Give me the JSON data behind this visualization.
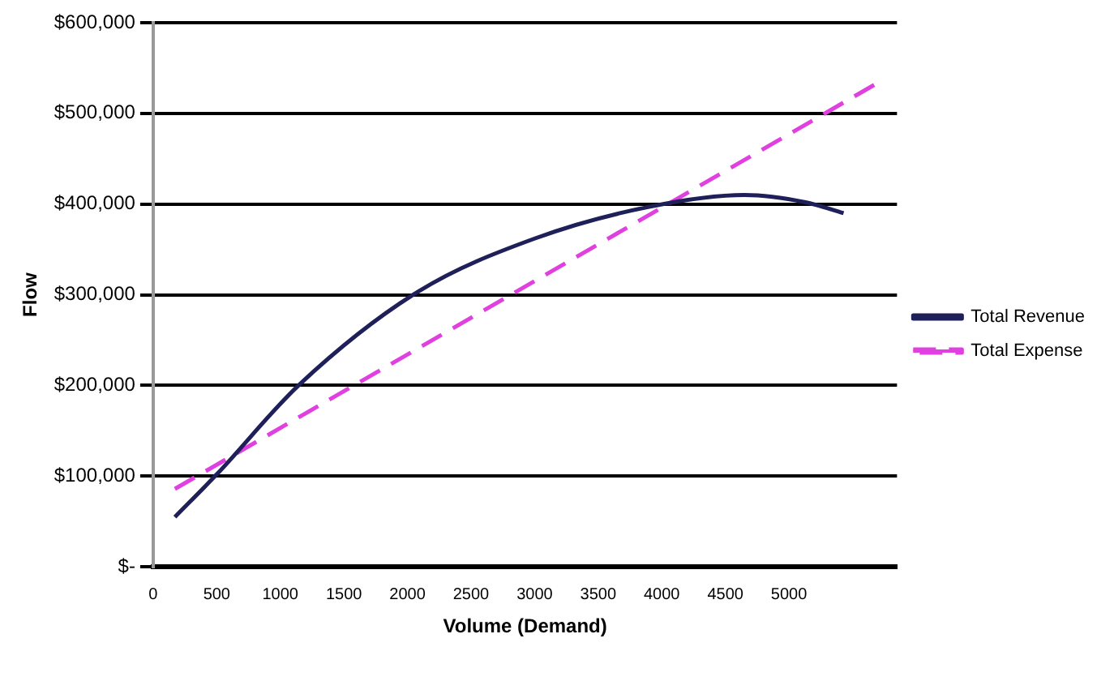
{
  "chart_data": {
    "type": "line",
    "xlabel": "Volume (Demand)",
    "ylabel": "Flow",
    "xlim": [
      0,
      5850
    ],
    "xticks": [
      0,
      500,
      1000,
      1500,
      2000,
      2500,
      3000,
      3500,
      4000,
      4500,
      5000
    ],
    "ylim": [
      0,
      600000
    ],
    "yticks": [
      {
        "value": 0,
        "label": "$-"
      },
      {
        "value": 100000,
        "label": "$100,000"
      },
      {
        "value": 200000,
        "label": "$200,000"
      },
      {
        "value": 300000,
        "label": "$300,000"
      },
      {
        "value": 400000,
        "label": "$400,000"
      },
      {
        "value": 500000,
        "label": "$500,000"
      },
      {
        "value": 600000,
        "label": "$600,000"
      }
    ],
    "grid": "y",
    "legend": "right",
    "marker": "none",
    "series": [
      {
        "name": "Total Revenue",
        "color": "#1f1f5a",
        "line_style": "solid",
        "x": [
          171,
          500,
          1150,
          2090,
          3000,
          3900,
          4650,
          5130,
          5430
        ],
        "values": [
          55000,
          102000,
          201000,
          304000,
          362000,
          397000,
          410000,
          402000,
          390000
        ]
      },
      {
        "name": "Total Expense",
        "color": "#e040e0",
        "line_style": "dashed",
        "x": [
          171,
          5678
        ],
        "values": [
          86000,
          532000
        ]
      }
    ]
  }
}
